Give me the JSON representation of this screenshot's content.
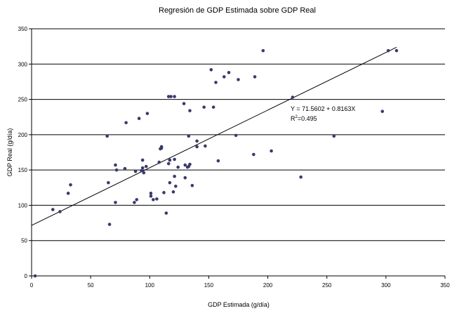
{
  "chart_data": {
    "type": "scatter",
    "title": "Regresión de GDP Estimada sobre GDP Real",
    "xlabel": "GDP Estimada (g/día)",
    "ylabel": "GDP Real (g/día)",
    "xlim": [
      0,
      350
    ],
    "ylim": [
      0,
      350
    ],
    "xticks": [
      "0",
      "50",
      "100",
      "150",
      "200",
      "250",
      "300",
      "350"
    ],
    "yticks": [
      "0",
      "50",
      "100",
      "150",
      "200",
      "250",
      "300",
      "350"
    ],
    "grid": "horizontal",
    "point_color": "#3a3a6e",
    "points": [
      [
        3,
        0
      ],
      [
        18,
        94
      ],
      [
        24,
        91
      ],
      [
        31,
        117
      ],
      [
        33,
        129
      ],
      [
        64,
        198
      ],
      [
        65,
        132
      ],
      [
        66,
        73
      ],
      [
        71,
        104
      ],
      [
        71,
        157
      ],
      [
        72,
        150
      ],
      [
        79,
        152
      ],
      [
        80,
        217
      ],
      [
        87,
        104
      ],
      [
        88,
        148
      ],
      [
        89,
        108
      ],
      [
        91,
        223
      ],
      [
        93,
        149
      ],
      [
        94,
        153
      ],
      [
        94,
        164
      ],
      [
        95,
        146
      ],
      [
        97,
        155
      ],
      [
        98,
        230
      ],
      [
        101,
        113
      ],
      [
        101,
        117
      ],
      [
        103,
        108
      ],
      [
        106,
        109
      ],
      [
        108,
        161
      ],
      [
        109,
        180
      ],
      [
        110,
        183
      ],
      [
        110,
        181
      ],
      [
        112,
        118
      ],
      [
        114,
        89
      ],
      [
        116,
        159
      ],
      [
        116,
        254
      ],
      [
        117,
        164
      ],
      [
        117,
        132
      ],
      [
        118,
        254
      ],
      [
        120,
        119
      ],
      [
        121,
        254
      ],
      [
        121,
        141
      ],
      [
        121,
        165
      ],
      [
        122,
        127
      ],
      [
        124,
        154
      ],
      [
        129,
        244
      ],
      [
        130,
        139
      ],
      [
        130,
        157
      ],
      [
        132,
        154
      ],
      [
        133,
        155
      ],
      [
        133,
        198
      ],
      [
        134,
        158
      ],
      [
        134,
        234
      ],
      [
        136,
        128
      ],
      [
        140,
        191
      ],
      [
        140,
        183
      ],
      [
        146,
        239
      ],
      [
        147,
        184
      ],
      [
        152,
        292
      ],
      [
        154,
        239
      ],
      [
        156,
        274
      ],
      [
        158,
        163
      ],
      [
        163,
        282
      ],
      [
        167,
        288
      ],
      [
        173,
        199
      ],
      [
        175,
        278
      ],
      [
        188,
        172
      ],
      [
        189,
        282
      ],
      [
        196,
        319
      ],
      [
        203,
        177
      ],
      [
        221,
        253
      ],
      [
        228,
        140
      ],
      [
        256,
        198
      ],
      [
        297,
        233
      ],
      [
        302,
        319
      ],
      [
        309,
        319
      ]
    ],
    "regression": {
      "intercept": 71.5602,
      "slope": 0.8163,
      "x_range": [
        0,
        309
      ]
    },
    "annotation": {
      "equation": "Y = 71.5602 + 0.8163X",
      "r2_prefix": "R",
      "r2_sup": "2",
      "r2_value": "=0.495"
    }
  }
}
